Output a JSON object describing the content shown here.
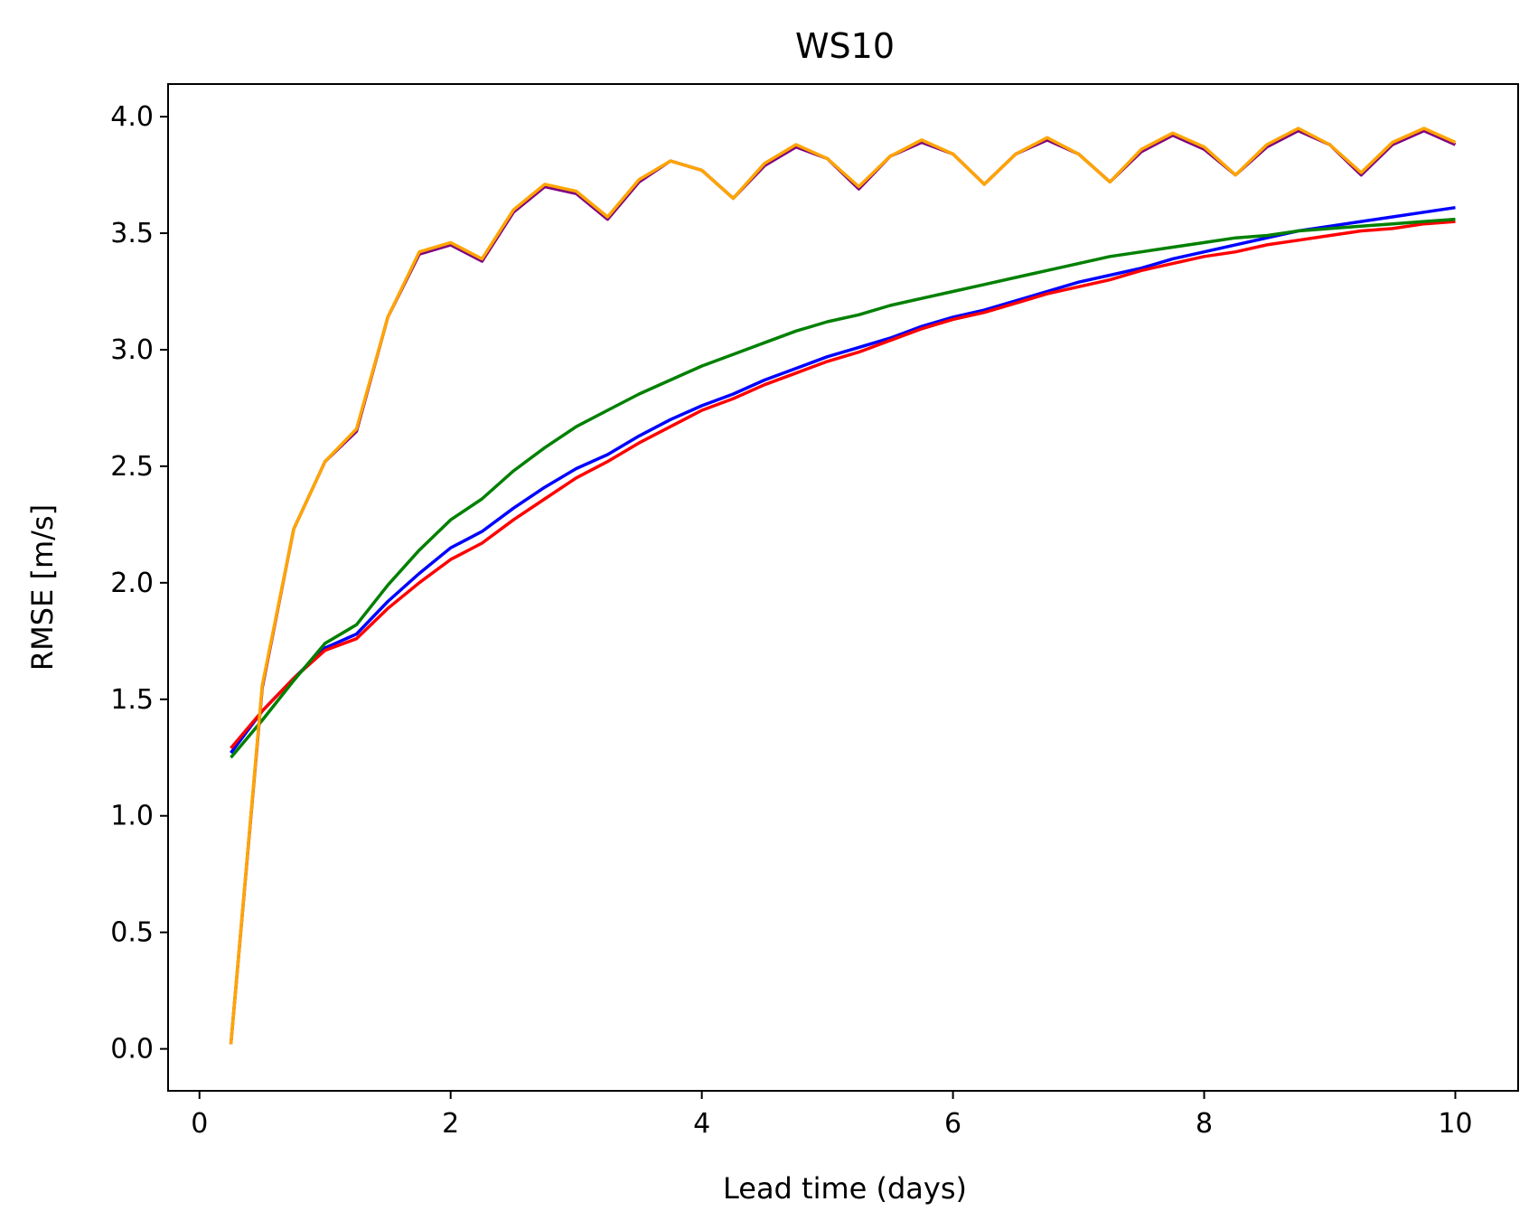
{
  "chart_data": {
    "type": "line",
    "title": "WS10",
    "xlabel": "Lead time (days)",
    "ylabel": "RMSE [m/s]",
    "xlim": [
      -0.25,
      10.5
    ],
    "ylim": [
      -0.18,
      4.14
    ],
    "xticks": [
      "0",
      "2",
      "4",
      "6",
      "8",
      "10"
    ],
    "yticks": [
      "0.0",
      "0.5",
      "1.0",
      "1.5",
      "2.0",
      "2.5",
      "3.0",
      "3.5",
      "4.0"
    ],
    "grid": false,
    "x": [
      0.25,
      0.5,
      0.75,
      1.0,
      1.25,
      1.5,
      1.75,
      2.0,
      2.25,
      2.5,
      2.75,
      3.0,
      3.25,
      3.5,
      3.75,
      4.0,
      4.25,
      4.5,
      4.75,
      5.0,
      5.25,
      5.5,
      5.75,
      6.0,
      6.25,
      6.5,
      6.75,
      7.0,
      7.25,
      7.5,
      7.75,
      8.0,
      8.25,
      8.5,
      8.75,
      9.0,
      9.25,
      9.5,
      9.75,
      10.0
    ],
    "series": [
      {
        "color": "#0000ff",
        "values": [
          1.27,
          1.45,
          1.59,
          1.72,
          1.78,
          1.92,
          2.04,
          2.15,
          2.22,
          2.32,
          2.41,
          2.49,
          2.55,
          2.63,
          2.7,
          2.76,
          2.81,
          2.87,
          2.92,
          2.97,
          3.01,
          3.05,
          3.1,
          3.14,
          3.17,
          3.21,
          3.25,
          3.29,
          3.32,
          3.35,
          3.39,
          3.42,
          3.45,
          3.48,
          3.51,
          3.53,
          3.55,
          3.57,
          3.59,
          3.61
        ]
      },
      {
        "color": "#ff0000",
        "values": [
          1.29,
          1.45,
          1.59,
          1.71,
          1.76,
          1.89,
          2.0,
          2.1,
          2.17,
          2.27,
          2.36,
          2.45,
          2.52,
          2.6,
          2.67,
          2.74,
          2.79,
          2.85,
          2.9,
          2.95,
          2.99,
          3.04,
          3.09,
          3.13,
          3.16,
          3.2,
          3.24,
          3.27,
          3.3,
          3.34,
          3.37,
          3.4,
          3.42,
          3.45,
          3.47,
          3.49,
          3.51,
          3.52,
          3.54,
          3.55
        ]
      },
      {
        "color": "#008000",
        "values": [
          1.25,
          1.41,
          1.58,
          1.74,
          1.82,
          1.99,
          2.14,
          2.27,
          2.36,
          2.48,
          2.58,
          2.67,
          2.74,
          2.81,
          2.87,
          2.93,
          2.98,
          3.03,
          3.08,
          3.12,
          3.15,
          3.19,
          3.22,
          3.25,
          3.28,
          3.31,
          3.34,
          3.37,
          3.4,
          3.42,
          3.44,
          3.46,
          3.48,
          3.49,
          3.51,
          3.52,
          3.53,
          3.54,
          3.55,
          3.56
        ]
      },
      {
        "color": "#800080",
        "values": [
          0.02,
          1.55,
          2.23,
          2.52,
          2.65,
          3.14,
          3.41,
          3.45,
          3.38,
          3.59,
          3.7,
          3.67,
          3.56,
          3.72,
          3.81,
          3.77,
          3.65,
          3.79,
          3.87,
          3.82,
          3.69,
          3.83,
          3.89,
          3.84,
          3.71,
          3.84,
          3.9,
          3.84,
          3.72,
          3.85,
          3.92,
          3.86,
          3.75,
          3.87,
          3.94,
          3.88,
          3.75,
          3.88,
          3.94,
          3.88
        ]
      },
      {
        "color": "#ffa500",
        "values": [
          0.02,
          1.56,
          2.23,
          2.52,
          2.66,
          3.14,
          3.42,
          3.46,
          3.39,
          3.6,
          3.71,
          3.68,
          3.57,
          3.73,
          3.81,
          3.77,
          3.65,
          3.8,
          3.88,
          3.82,
          3.7,
          3.83,
          3.9,
          3.84,
          3.71,
          3.84,
          3.91,
          3.84,
          3.72,
          3.86,
          3.93,
          3.87,
          3.75,
          3.88,
          3.95,
          3.88,
          3.76,
          3.89,
          3.95,
          3.89
        ]
      }
    ]
  }
}
